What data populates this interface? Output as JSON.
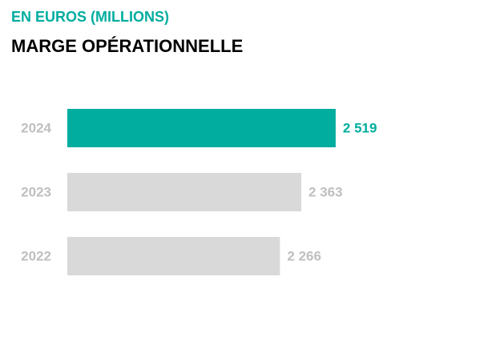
{
  "chart_data": {
    "type": "bar",
    "orientation": "horizontal",
    "subtitle": "EN EUROS (MILLIONS)",
    "title": "MARGE OPÉRATIONNELLE",
    "categories": [
      "2024",
      "2023",
      "2022"
    ],
    "values": [
      2519,
      2363,
      2266
    ],
    "value_labels": [
      "2 519",
      "2 363",
      "2 266"
    ],
    "colors": [
      "#00ad9f",
      "#d9d9d9",
      "#d9d9d9"
    ],
    "value_label_colors": [
      "#00ad9f",
      "#bfbfbf",
      "#bfbfbf"
    ],
    "xlim": [
      1300,
      3200
    ]
  }
}
